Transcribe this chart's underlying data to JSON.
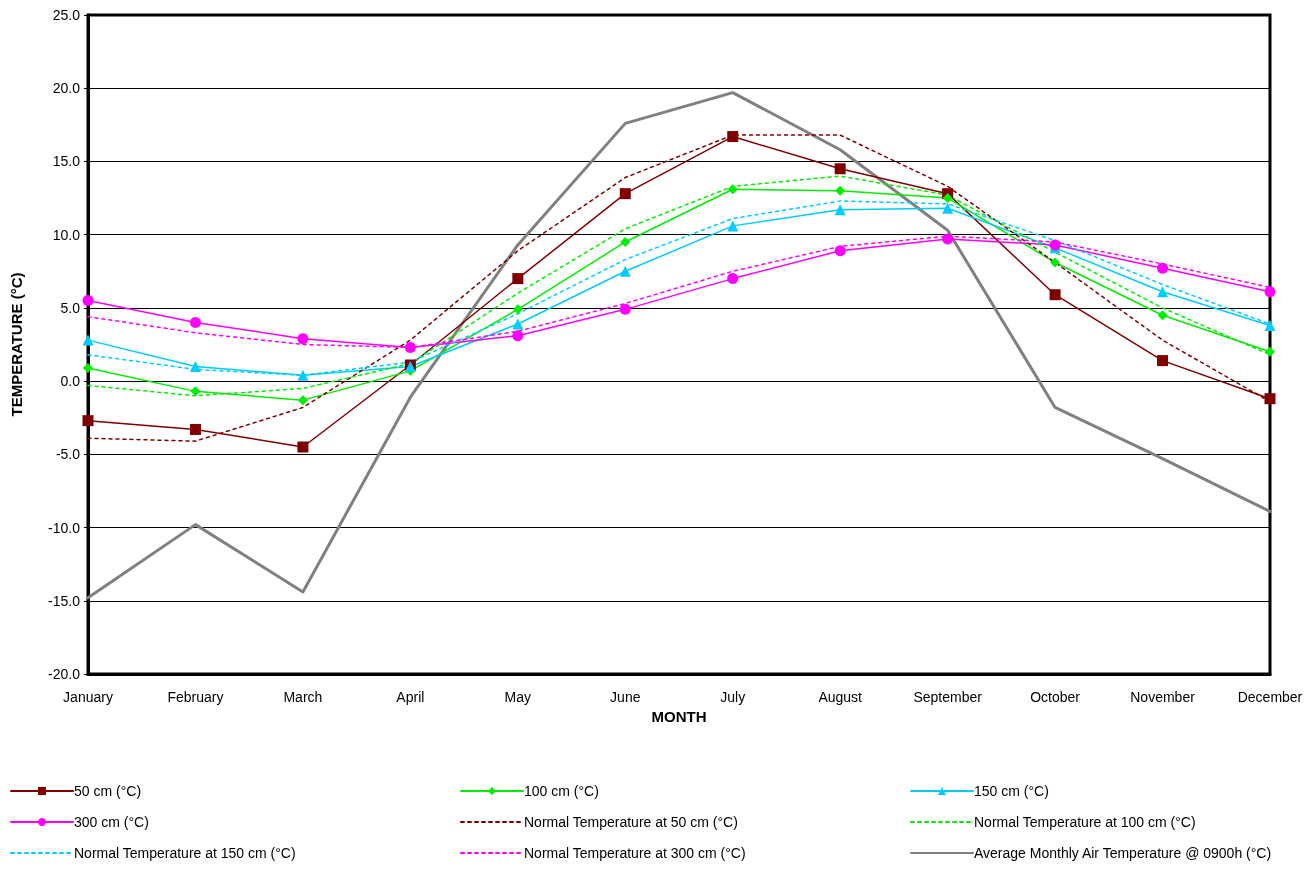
{
  "chart_data": {
    "type": "line",
    "xlabel": "MONTH",
    "ylabel": "TEMPERATURE (°C)",
    "categories": [
      "January",
      "February",
      "March",
      "April",
      "May",
      "June",
      "July",
      "August",
      "September",
      "October",
      "November",
      "December"
    ],
    "ylim": [
      -20,
      25
    ],
    "yticks": [
      {
        "value": -20,
        "label": "-20.0"
      },
      {
        "value": -15,
        "label": "-15.0"
      },
      {
        "value": -10,
        "label": "-10.0"
      },
      {
        "value": -5,
        "label": "-5.0"
      },
      {
        "value": 0,
        "label": "0.0"
      },
      {
        "value": 5,
        "label": "5.0"
      },
      {
        "value": 10,
        "label": "10.0"
      },
      {
        "value": 15,
        "label": "15.0"
      },
      {
        "value": 20,
        "label": "20.0"
      },
      {
        "value": 25,
        "label": "25.0"
      }
    ],
    "grid": "y",
    "legend": "bottom",
    "series": [
      {
        "name": "50 cm (°C)",
        "color": "#800000",
        "marker": "square",
        "line_style": "solid",
        "values": [
          -2.7,
          -3.3,
          -4.5,
          1.1,
          7.0,
          12.8,
          16.7,
          14.5,
          12.8,
          5.9,
          1.4,
          -1.2
        ]
      },
      {
        "name": "100 cm (°C)",
        "color": "#00ee00",
        "marker": "diamond",
        "line_style": "solid",
        "values": [
          0.9,
          -0.7,
          -1.3,
          0.7,
          4.9,
          9.5,
          13.1,
          13.0,
          12.5,
          8.1,
          4.5,
          2.0
        ]
      },
      {
        "name": "150 cm (°C)",
        "color": "#00ccff",
        "marker": "triangle",
        "line_style": "solid",
        "values": [
          2.8,
          1.0,
          0.4,
          1.0,
          3.9,
          7.5,
          10.6,
          11.7,
          11.8,
          9.1,
          6.1,
          3.8
        ]
      },
      {
        "name": "300 cm (°C)",
        "color": "#ff00ff",
        "marker": "circle",
        "line_style": "solid",
        "values": [
          5.5,
          4.0,
          2.9,
          2.3,
          3.1,
          4.9,
          7.0,
          8.9,
          9.7,
          9.3,
          7.7,
          6.1
        ]
      },
      {
        "name": "Normal Temperature at 50 cm (°C)",
        "color": "#800000",
        "marker": "none",
        "line_style": "dotted",
        "values": [
          -3.9,
          -4.1,
          -1.8,
          2.8,
          8.9,
          13.9,
          16.8,
          16.8,
          13.3,
          8.1,
          2.8,
          -1.4
        ]
      },
      {
        "name": "Normal Temperature at 100 cm (°C)",
        "color": "#00ee00",
        "marker": "none",
        "line_style": "dotted",
        "values": [
          -0.3,
          -1.0,
          -0.5,
          1.2,
          6.0,
          10.4,
          13.3,
          14.0,
          12.7,
          8.8,
          5.0,
          1.8
        ]
      },
      {
        "name": "Normal Temperature at 150 cm (°C)",
        "color": "#00ccff",
        "marker": "none",
        "line_style": "dotted",
        "values": [
          1.8,
          0.8,
          0.4,
          1.3,
          4.6,
          8.3,
          11.1,
          12.3,
          12.1,
          9.6,
          6.6,
          3.9
        ]
      },
      {
        "name": "Normal Temperature at 300 cm (°C)",
        "color": "#ff00ff",
        "marker": "none",
        "line_style": "dotted",
        "values": [
          4.4,
          3.3,
          2.5,
          2.3,
          3.4,
          5.3,
          7.5,
          9.2,
          9.9,
          9.5,
          8.0,
          6.4
        ]
      },
      {
        "name": "Average Monthly Air Temperature @ 0900h (°C)",
        "color": "#808080",
        "marker": "none",
        "line_style": "solid",
        "values": [
          -14.8,
          -9.8,
          -14.4,
          -1.1,
          9.3,
          17.6,
          19.7,
          15.8,
          10.3,
          -1.8,
          -5.3,
          -8.9
        ]
      }
    ]
  }
}
